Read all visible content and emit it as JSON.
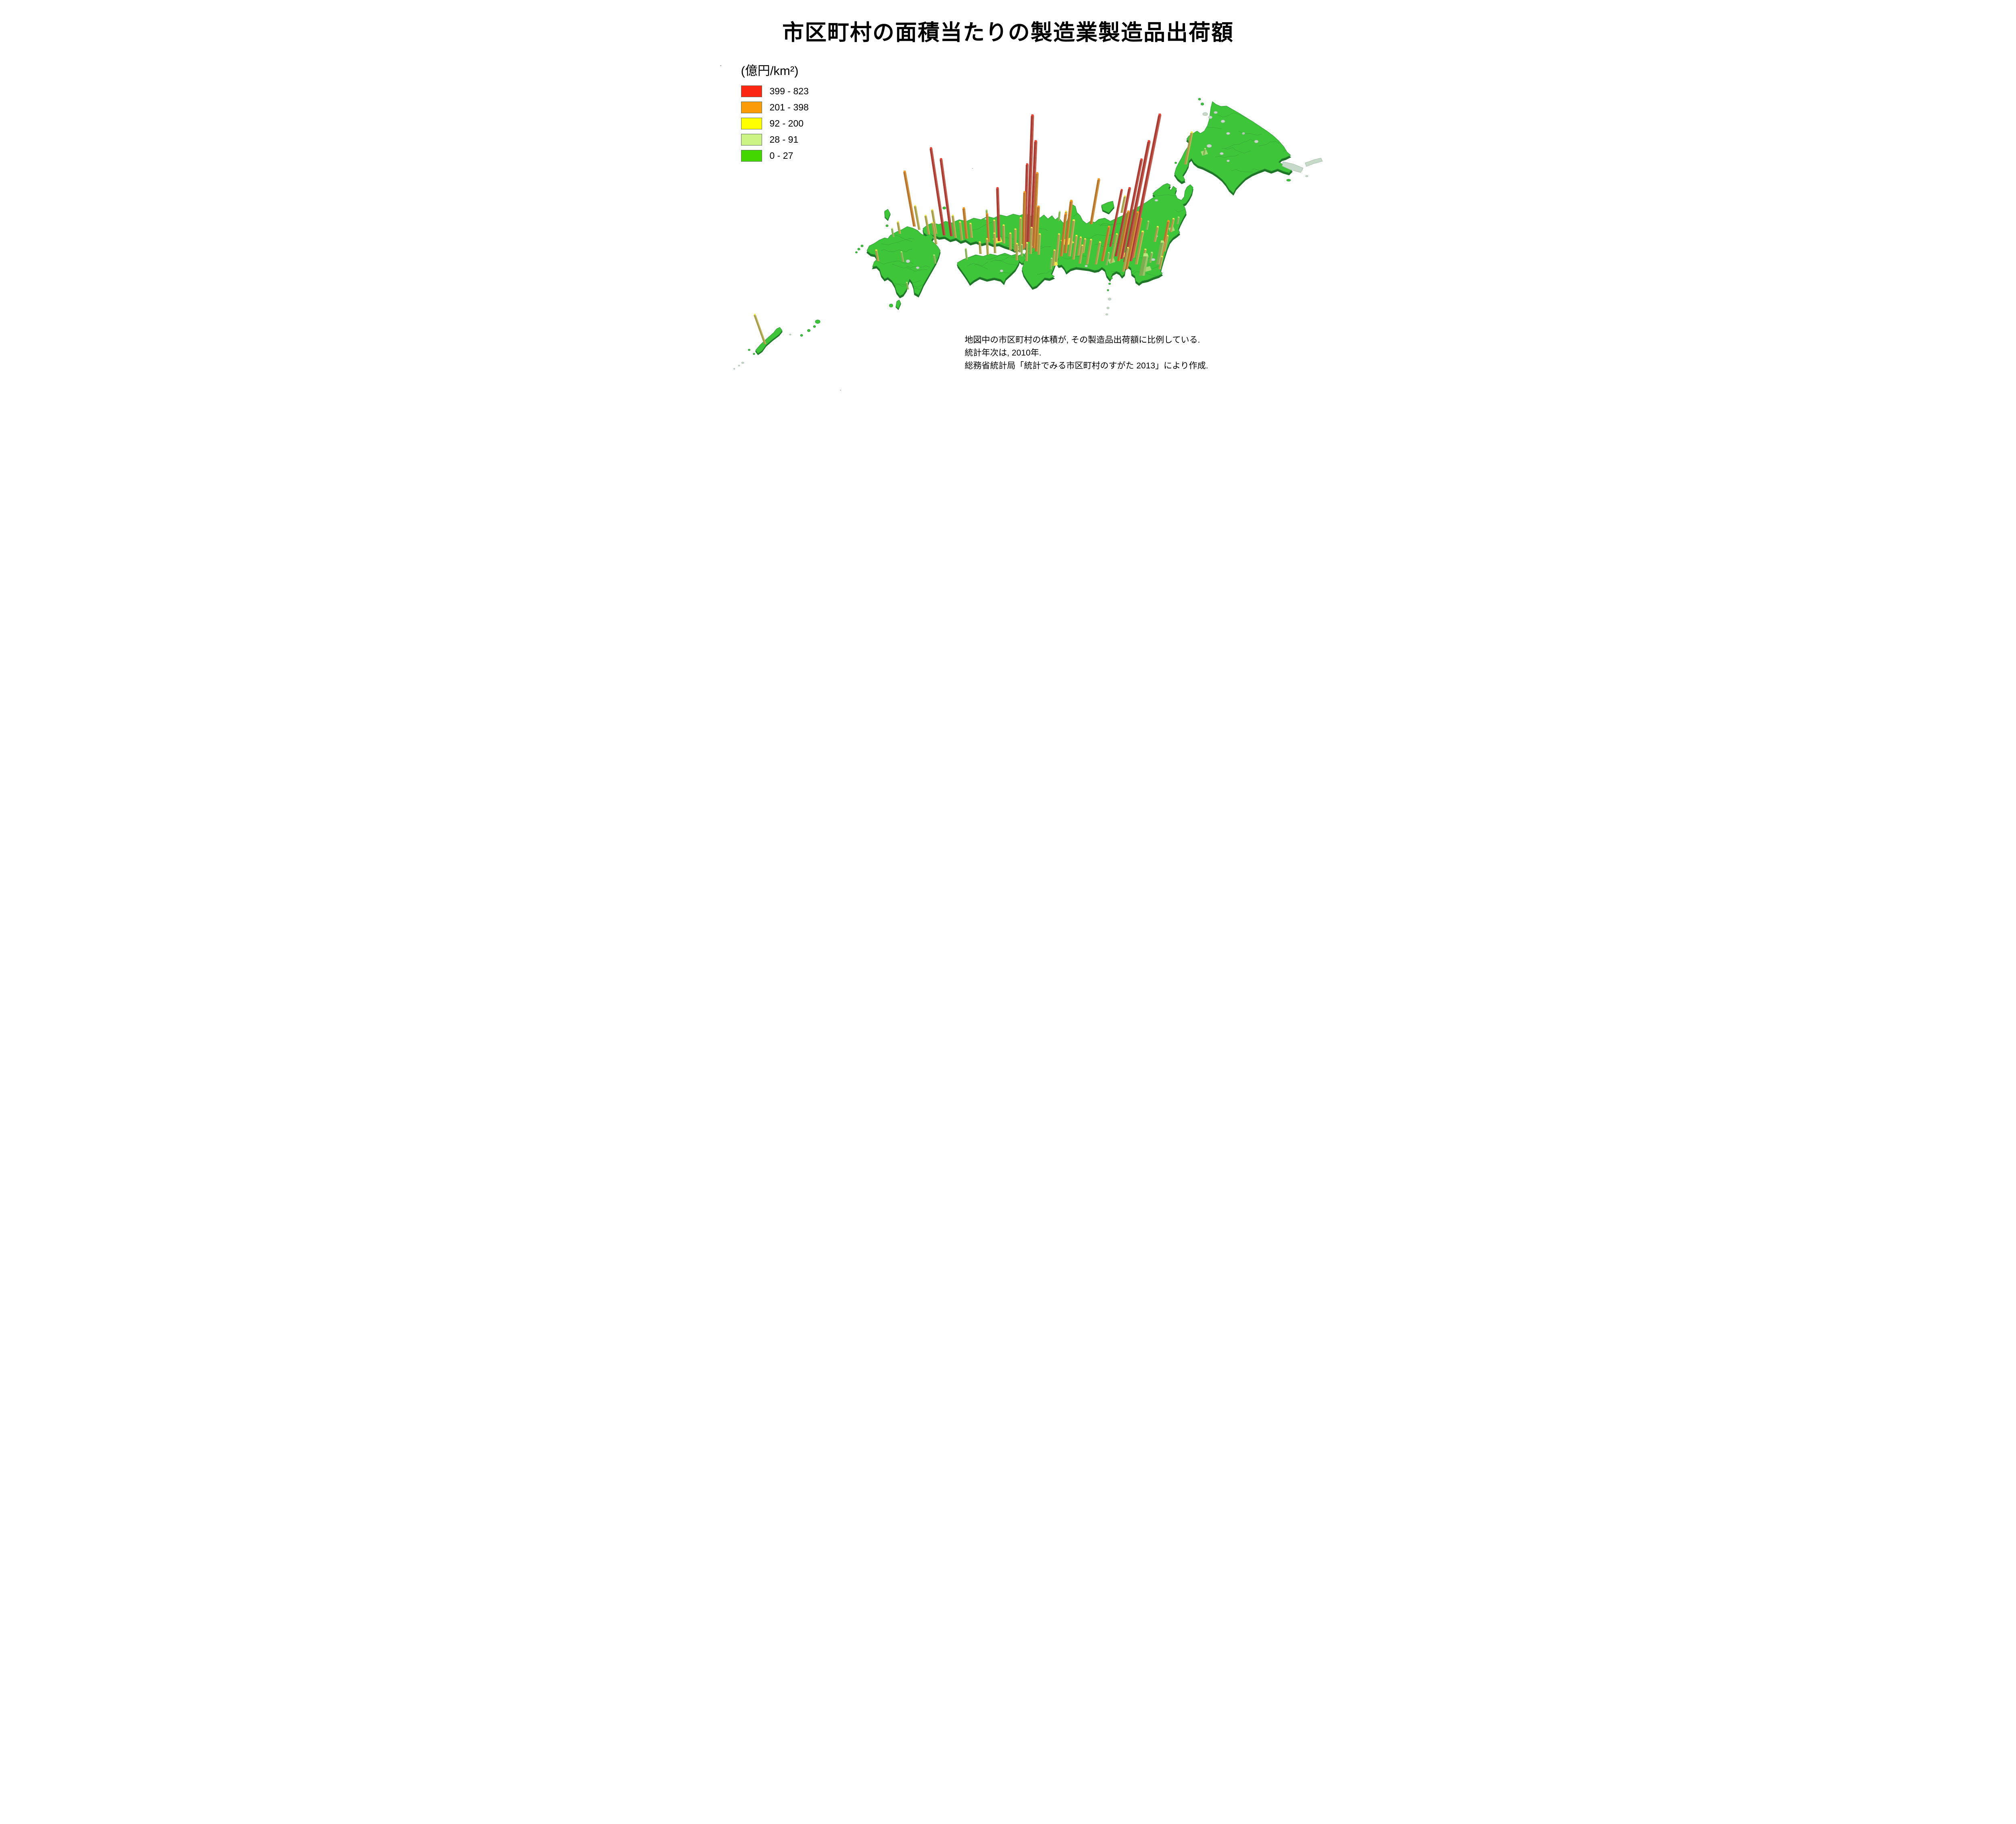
{
  "title": "市区町村の面積当たりの製造業製造品出荷額",
  "legend": {
    "unit_label": "(億円/km²)",
    "classes": [
      {
        "label": "399 - 823",
        "color": "#fc2713"
      },
      {
        "label": "201 - 398",
        "color": "#fb9b07"
      },
      {
        "label": "92 - 200",
        "color": "#ffff00"
      },
      {
        "label": "28 - 91",
        "color": "#ccf484"
      },
      {
        "label": "0 - 27",
        "color": "#44d600"
      }
    ]
  },
  "notes": [
    "地図中の市区町村の体積が, その製造品出荷額に比例している.",
    "統計年次は, 2010年.",
    "総務省統計局「統計でみる市区町村のすがた 2013」により作成."
  ],
  "map": {
    "type": "3d-prism-choropleth",
    "region": "Japan, by municipality",
    "land_color": "#3ec53a",
    "land_edge_color": "#2e9733",
    "extrude_color": "#1e7527",
    "boundary_color": "#2f8a33",
    "water_patch_color": "#c7dac9",
    "palette": {
      "r": {
        "body": "#a83b32",
        "side": "#c25a4c",
        "cap": "#ea4435"
      },
      "o": {
        "body": "#b5742c",
        "side": "#d3923e",
        "cap": "#f89a1f"
      },
      "y": {
        "body": "#a39a4a",
        "side": "#c1b55b",
        "cap": "#f2ea4d"
      },
      "g": {
        "body": "#7dac51",
        "side": "#9bc469",
        "cap": "#b7e77d"
      }
    },
    "bars_format": [
      "x_base",
      "y_base",
      "height",
      "class",
      "width",
      "lean_optional"
    ],
    "bars": [
      [
        1248,
        408,
        78,
        "y",
        7
      ],
      [
        1294,
        384,
        14,
        "g",
        5
      ],
      [
        1212,
        576,
        32,
        "y",
        6
      ],
      [
        1228,
        556,
        16,
        "g",
        5
      ],
      [
        1196,
        624,
        38,
        "y",
        6
      ],
      [
        1188,
        640,
        90,
        "o",
        7
      ],
      [
        1172,
        600,
        36,
        "y",
        6
      ],
      [
        1152,
        570,
        20,
        "g",
        5
      ],
      [
        1090,
        528,
        40,
        "y",
        6
      ],
      [
        1014,
        556,
        110,
        "o",
        7
      ],
      [
        948,
        562,
        36,
        "y",
        6
      ],
      [
        934,
        548,
        22,
        "g",
        5
      ],
      [
        1112,
        648,
        362,
        "r",
        8
      ],
      [
        1098,
        650,
        298,
        "r",
        8
      ],
      [
        1090,
        642,
        245,
        "r",
        7
      ],
      [
        1076,
        636,
        168,
        "r",
        7
      ],
      [
        1082,
        648,
        122,
        "o",
        7
      ],
      [
        1118,
        640,
        96,
        "o",
        7
      ],
      [
        1102,
        668,
        140,
        "o",
        7
      ],
      [
        1064,
        652,
        70,
        "y",
        6
      ],
      [
        1094,
        674,
        58,
        "y",
        6
      ],
      [
        1126,
        656,
        80,
        "y",
        7
      ],
      [
        1140,
        664,
        44,
        "y",
        6
      ],
      [
        1052,
        658,
        30,
        "g",
        5
      ],
      [
        1140,
        684,
        48,
        "g",
        14
      ],
      [
        1180,
        656,
        54,
        "g",
        10
      ],
      [
        1160,
        652,
        24,
        "g",
        6
      ],
      [
        1062,
        612,
        140,
        "r",
        6
      ],
      [
        1092,
        616,
        48,
        "y",
        6
      ],
      [
        1184,
        668,
        30,
        "y",
        6
      ],
      [
        1042,
        648,
        84,
        "o",
        7
      ],
      [
        1026,
        656,
        54,
        "y",
        6
      ],
      [
        1004,
        656,
        60,
        "y",
        6
      ],
      [
        986,
        654,
        44,
        "y",
        6
      ],
      [
        950,
        628,
        128,
        "o",
        8
      ],
      [
        940,
        636,
        104,
        "o",
        7
      ],
      [
        960,
        636,
        88,
        "y",
        7
      ],
      [
        928,
        650,
        68,
        "y",
        6
      ],
      [
        970,
        644,
        58,
        "y",
        6
      ],
      [
        982,
        634,
        44,
        "y",
        6
      ],
      [
        920,
        660,
        38,
        "y",
        6
      ],
      [
        914,
        668,
        26,
        "g",
        5
      ],
      [
        994,
        628,
        34,
        "y",
        6
      ],
      [
        858,
        600,
        312,
        "r",
        8
      ],
      [
        866,
        610,
        258,
        "r",
        8
      ],
      [
        850,
        614,
        205,
        "r",
        7
      ],
      [
        872,
        616,
        185,
        "o",
        7
      ],
      [
        846,
        618,
        140,
        "o",
        7
      ],
      [
        878,
        624,
        110,
        "o",
        7
      ],
      [
        838,
        626,
        84,
        "y",
        6
      ],
      [
        864,
        630,
        64,
        "y",
        6
      ],
      [
        884,
        632,
        50,
        "y",
        6
      ],
      [
        826,
        624,
        54,
        "y",
        6
      ],
      [
        814,
        620,
        40,
        "y",
        6
      ],
      [
        842,
        636,
        28,
        "g",
        5
      ],
      [
        854,
        648,
        44,
        "y",
        6
      ],
      [
        786,
        598,
        130,
        "r",
        7
      ],
      [
        776,
        602,
        54,
        "y",
        6
      ],
      [
        798,
        604,
        44,
        "y",
        6
      ],
      [
        760,
        600,
        68,
        "o",
        6
      ],
      [
        706,
        592,
        74,
        "o",
        7
      ],
      [
        694,
        596,
        44,
        "y",
        6
      ],
      [
        678,
        590,
        54,
        "y",
        6
      ],
      [
        650,
        584,
        215,
        "r",
        7
      ],
      [
        668,
        586,
        190,
        "r",
        7
      ],
      [
        630,
        580,
        58,
        "y",
        6
      ],
      [
        718,
        590,
        34,
        "y",
        6
      ],
      [
        756,
        540,
        18,
        "g",
        5
      ],
      [
        576,
        562,
        135,
        "o",
        7
      ],
      [
        588,
        570,
        58,
        "y",
        6
      ],
      [
        540,
        580,
        28,
        "y",
        6
      ],
      [
        524,
        588,
        20,
        "g",
        5
      ],
      [
        612,
        582,
        46,
        "y",
        6
      ],
      [
        630,
        606,
        52,
        "y",
        6
      ],
      [
        548,
        650,
        24,
        "g",
        5
      ],
      [
        486,
        648,
        26,
        "y",
        6
      ],
      [
        628,
        654,
        20,
        "g",
        5
      ],
      [
        560,
        718,
        16,
        "g",
        5
      ],
      [
        830,
        646,
        40,
        "y",
        6
      ],
      [
        776,
        628,
        48,
        "y",
        6
      ],
      [
        758,
        632,
        38,
        "y",
        6
      ],
      [
        740,
        630,
        28,
        "y",
        6
      ],
      [
        706,
        644,
        26,
        "g",
        5
      ],
      [
        206,
        854,
        72,
        "y",
        6,
        -0.36
      ]
    ]
  }
}
